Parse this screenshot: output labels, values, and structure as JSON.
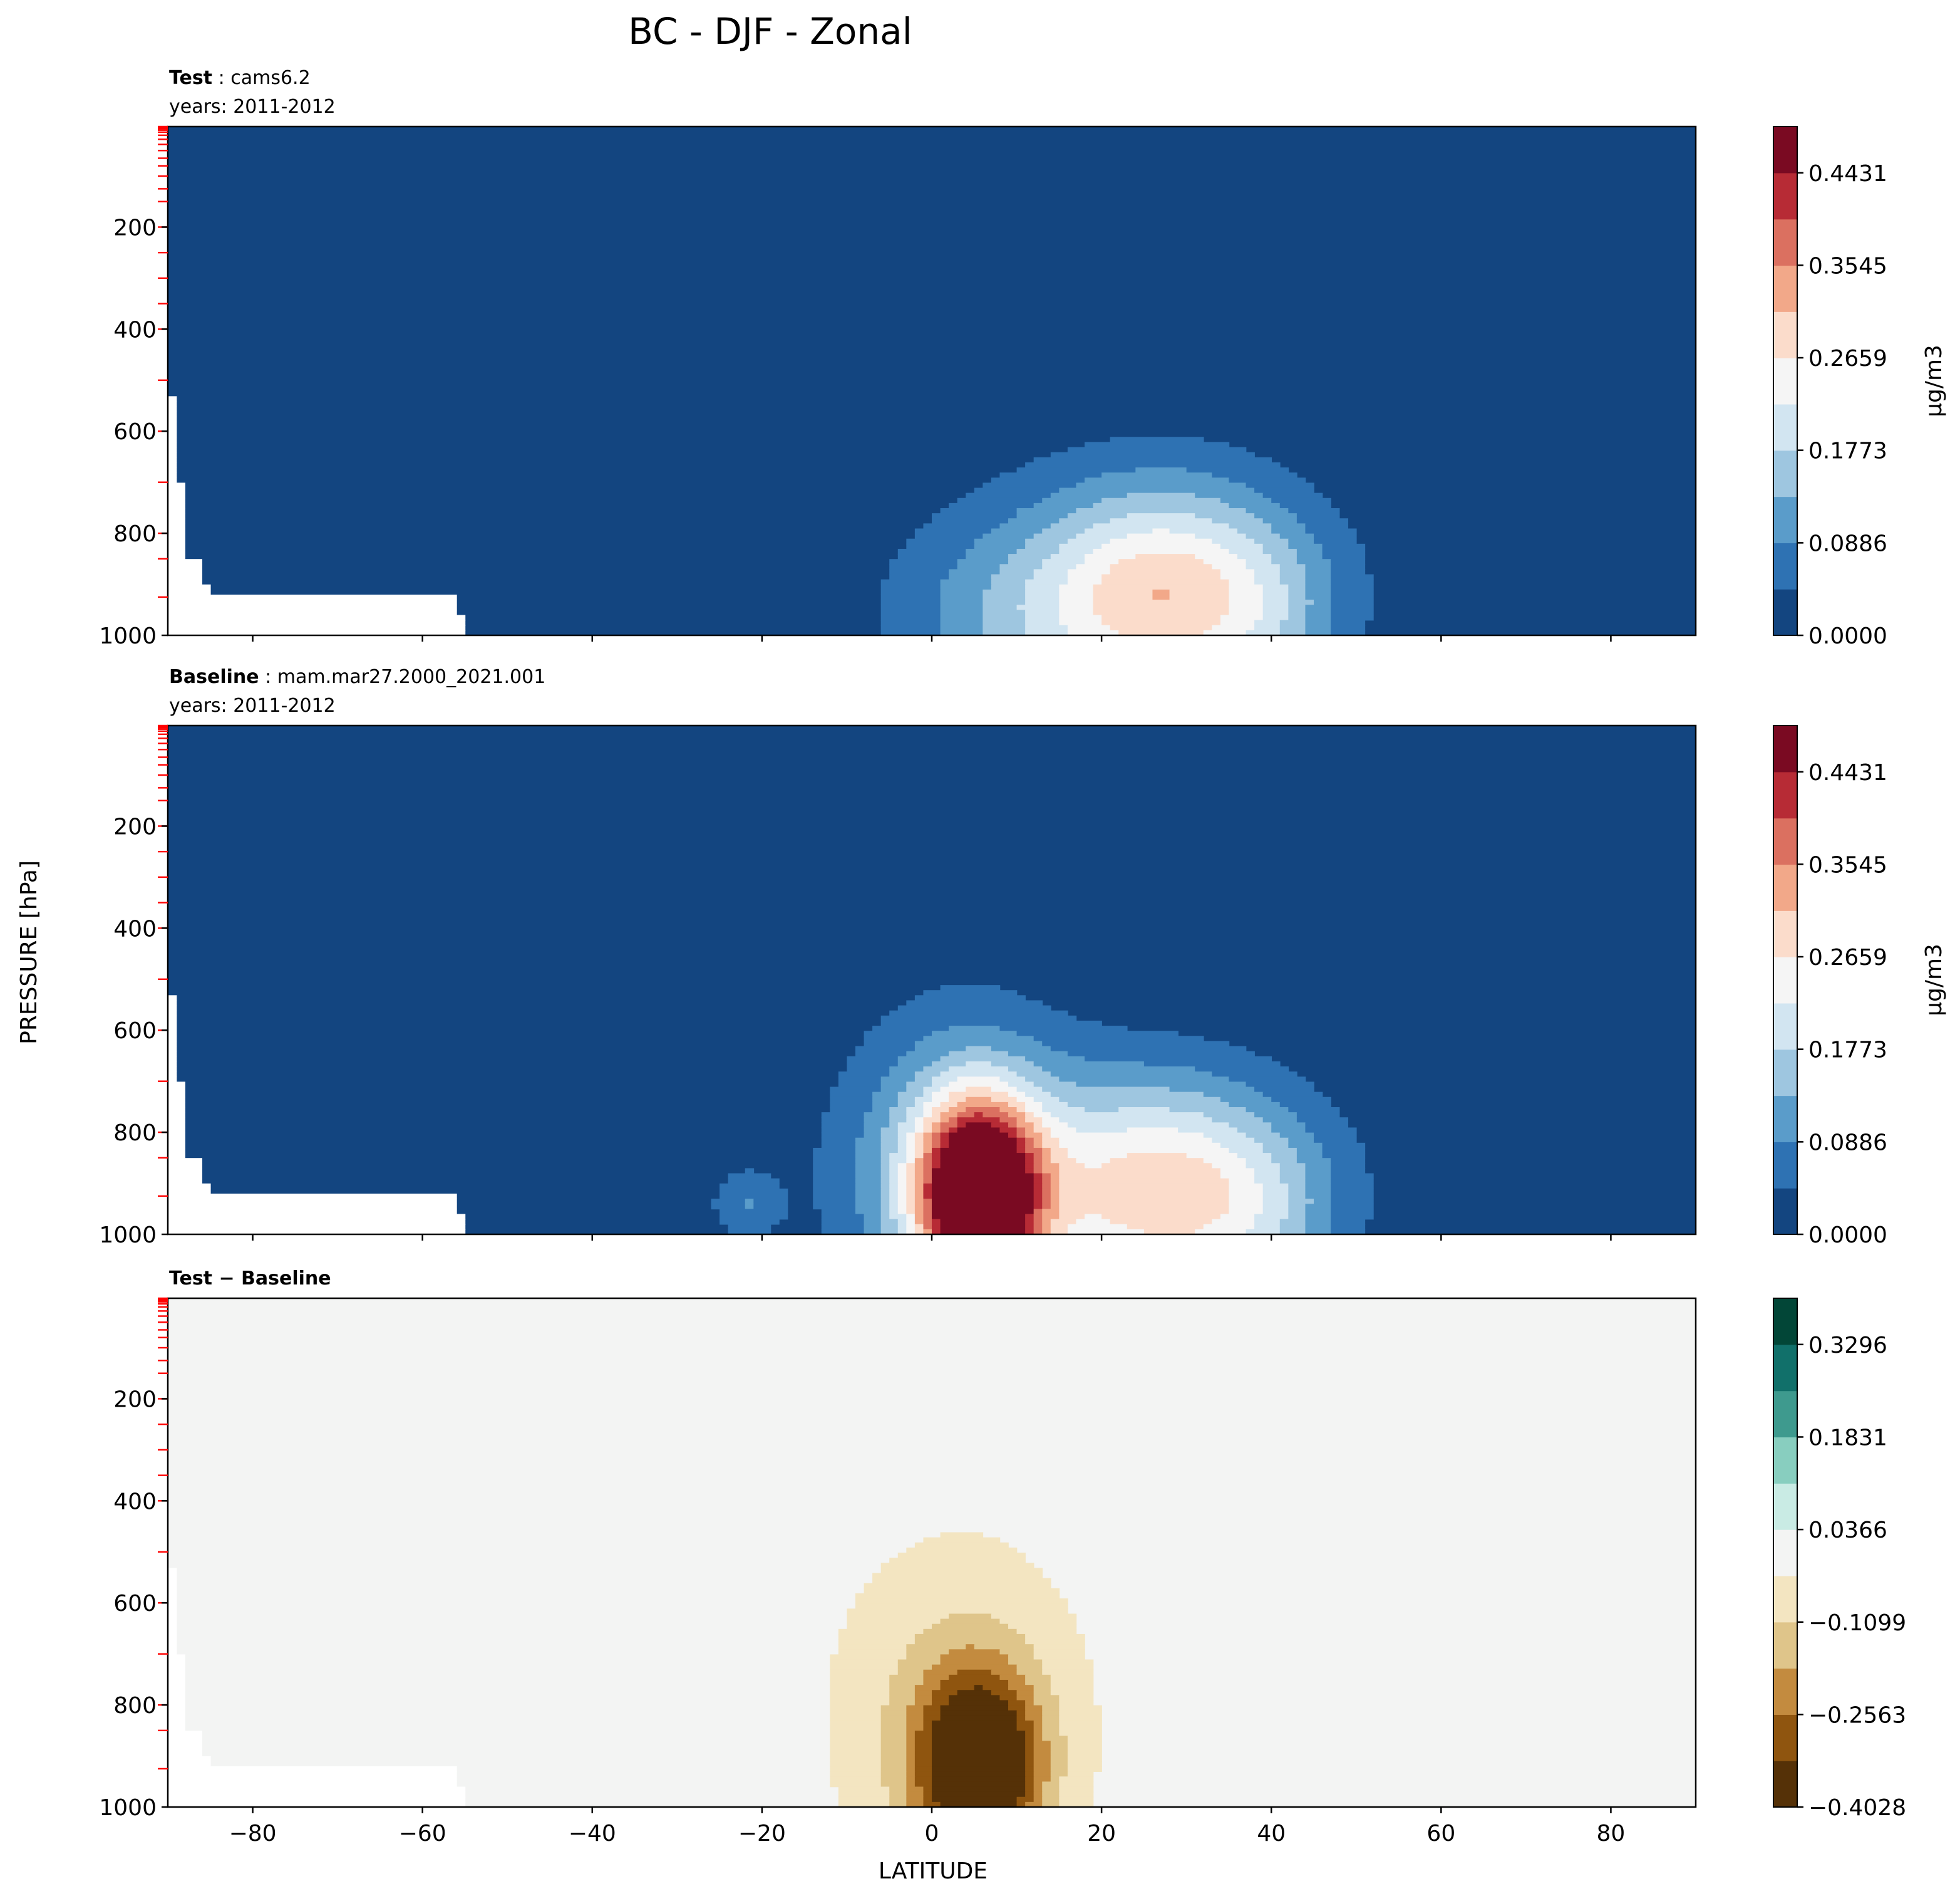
{
  "figure": {
    "title": "BC - DJF - Zonal",
    "xlabel": "LATITUDE",
    "ylabel": "PRESSURE [hPa]"
  },
  "colors": {
    "rdbu": [
      "#134580",
      "#2e72b3",
      "#5a9cca",
      "#9ec6e0",
      "#d2e5f1",
      "#f5f5f5",
      "#fbdccb",
      "#f2a889",
      "#db7060",
      "#b72b35",
      "#7a0a22"
    ],
    "brbg": [
      "#553107",
      "#8f550f",
      "#c38b3f",
      "#dfc58a",
      "#f3e5c1",
      "#f3f4f3",
      "#c9ebe4",
      "#88cebf",
      "#3e9a8e",
      "#11706a",
      "#024637"
    ],
    "land_mask": "#ffffff",
    "level_tick": "#ff0000"
  },
  "chart_data": [
    {
      "type": "heatmap",
      "panel": "test",
      "heading_bold": "Test",
      "heading_sep": " : ",
      "heading_text": "cams6.2",
      "subheading": "years: 2011-2012",
      "xlim": [
        -90,
        90
      ],
      "ylim": [
        1000,
        3
      ],
      "xticks": [
        -80,
        -60,
        -40,
        -20,
        0,
        20,
        40,
        60,
        80
      ],
      "yticks": [
        200,
        400,
        600,
        800,
        1000
      ],
      "colorbar": {
        "label": "μg/m3",
        "cmap": "rdbu",
        "range": [
          0.0,
          0.4874
        ],
        "ticks": [
          "0.0000",
          "0.0886",
          "0.1773",
          "0.2659",
          "0.3545",
          "0.4431"
        ],
        "tick_values": [
          0.0,
          0.0886,
          0.1773,
          0.2659,
          0.3545,
          0.4431
        ]
      },
      "features": [
        {
          "lat": 28,
          "p": 925,
          "peak": 0.2,
          "sx": 10,
          "sy": 150
        },
        {
          "lat": 22,
          "p": 900,
          "peak": 0.1,
          "sx": 18,
          "sy": 170
        },
        {
          "lat": 10,
          "p": 990,
          "peak": 0.06,
          "sx": 10,
          "sy": 120
        },
        {
          "lat": 40,
          "p": 960,
          "peak": 0.05,
          "sx": 6,
          "sy": 120
        }
      ]
    },
    {
      "type": "heatmap",
      "panel": "baseline",
      "heading_bold": "Baseline",
      "heading_sep": " : ",
      "heading_text": "mam.mar27.2000_2021.001",
      "subheading": "years: 2011-2012",
      "xlim": [
        -90,
        90
      ],
      "ylim": [
        1000,
        3
      ],
      "xticks": [
        -80,
        -60,
        -40,
        -20,
        0,
        20,
        40,
        60,
        80
      ],
      "yticks": [
        200,
        400,
        600,
        800,
        1000
      ],
      "colorbar": {
        "label": "μg/m3",
        "cmap": "rdbu",
        "range": [
          0.0,
          0.4874
        ],
        "ticks": [
          "0.0000",
          "0.0886",
          "0.1773",
          "0.2659",
          "0.3545",
          "0.4431"
        ],
        "tick_values": [
          0.0,
          0.0886,
          0.1773,
          0.2659,
          0.3545,
          0.4431
        ]
      },
      "features": [
        {
          "lat": 5.5,
          "p": 925,
          "peak": 0.5,
          "sx": 5,
          "sy": 130
        },
        {
          "lat": 3,
          "p": 860,
          "peak": 0.12,
          "sx": 10,
          "sy": 230
        },
        {
          "lat": 28,
          "p": 925,
          "peak": 0.2,
          "sx": 10,
          "sy": 150
        },
        {
          "lat": 22,
          "p": 900,
          "peak": 0.1,
          "sx": 18,
          "sy": 170
        },
        {
          "lat": -22,
          "p": 940,
          "peak": 0.08,
          "sx": 3,
          "sy": 50
        },
        {
          "lat": 40,
          "p": 960,
          "peak": 0.05,
          "sx": 6,
          "sy": 120
        }
      ]
    },
    {
      "type": "heatmap",
      "panel": "difference",
      "heading_bold": "Test − Baseline",
      "heading_sep": "",
      "heading_text": "",
      "subheading": "",
      "xlim": [
        -90,
        90
      ],
      "ylim": [
        1000,
        3
      ],
      "xticks": [
        -80,
        -60,
        -40,
        -20,
        0,
        20,
        40,
        60,
        80
      ],
      "yticks": [
        200,
        400,
        600,
        800,
        1000
      ],
      "colorbar": {
        "label": "",
        "cmap": "brbg",
        "range": [
          -0.4028,
          0.4028
        ],
        "ticks": [
          "−0.4028",
          "−0.2563",
          "−0.1099",
          "0.0366",
          "0.1831",
          "0.3296"
        ],
        "tick_values": [
          -0.4028,
          -0.2563,
          -0.1099,
          0.0366,
          0.1831,
          0.3296
        ]
      },
      "features": [
        {
          "lat": 5.5,
          "p": 925,
          "peak": -0.46,
          "sx": 5,
          "sy": 130
        },
        {
          "lat": 3,
          "p": 820,
          "peak": -0.12,
          "sx": 10,
          "sy": 230
        }
      ]
    }
  ]
}
